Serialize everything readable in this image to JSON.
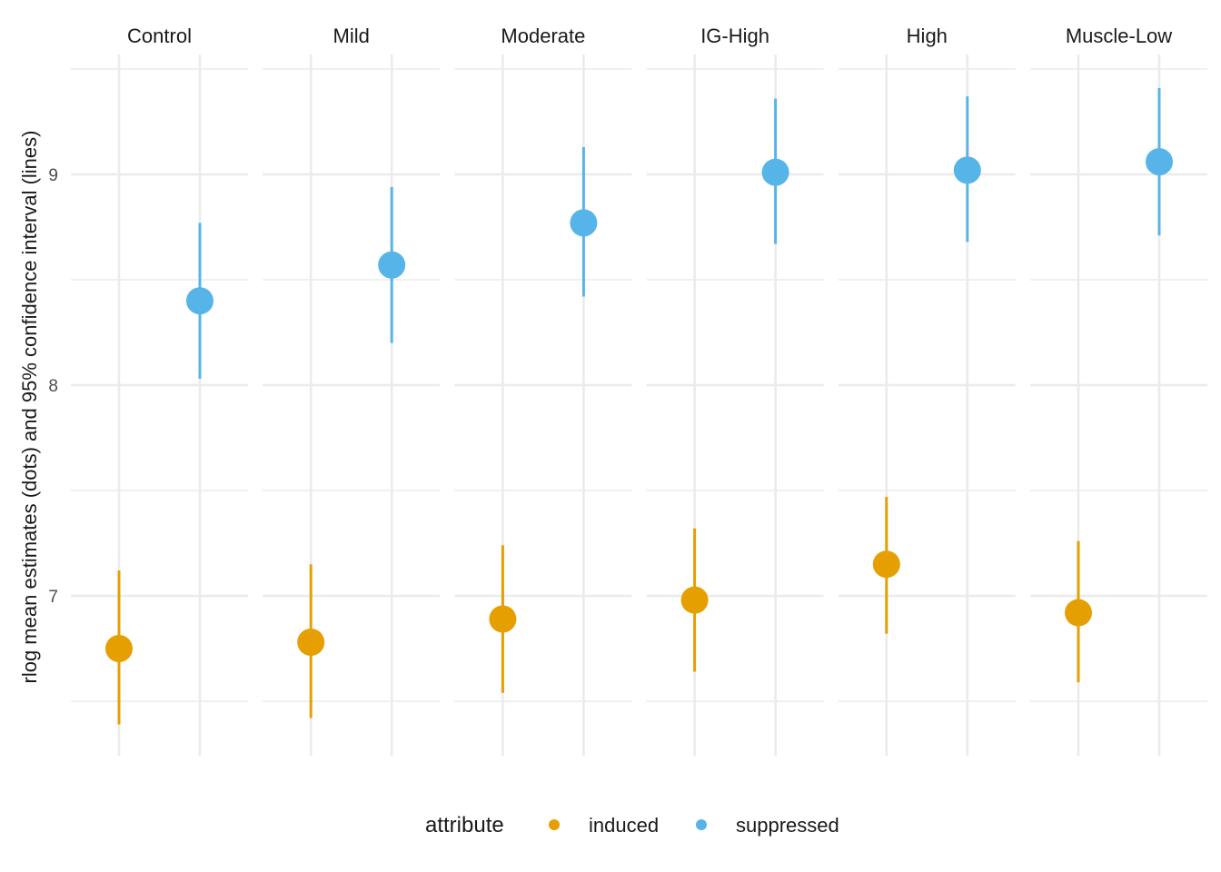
{
  "chart_data": {
    "type": "scatter",
    "subtype": "pointrange-facets",
    "facets": [
      "Control",
      "Mild",
      "Moderate",
      "IG-High",
      "High",
      "Muscle-Low"
    ],
    "ylabel": "rlog mean estimates (dots) and 95% confidence interval (lines)",
    "xlabel": "",
    "ylim": [
      6.3,
      9.55
    ],
    "yticks": [
      7,
      8,
      9
    ],
    "grid": true,
    "legend": {
      "title": "attribute",
      "position": "bottom"
    },
    "series": [
      {
        "name": "induced",
        "color": "#E69F00",
        "estimate": [
          6.75,
          6.78,
          6.89,
          6.98,
          7.15,
          6.92
        ],
        "lower": [
          6.39,
          6.42,
          6.54,
          6.64,
          6.82,
          6.59
        ],
        "upper": [
          7.12,
          7.15,
          7.24,
          7.32,
          7.47,
          7.26
        ]
      },
      {
        "name": "suppressed",
        "color": "#56B4E9",
        "estimate": [
          8.4,
          8.57,
          8.77,
          9.01,
          9.02,
          9.06
        ],
        "lower": [
          8.03,
          8.2,
          8.42,
          8.67,
          8.68,
          8.71
        ],
        "upper": [
          8.77,
          8.94,
          9.13,
          9.36,
          9.37,
          9.41
        ]
      }
    ]
  }
}
